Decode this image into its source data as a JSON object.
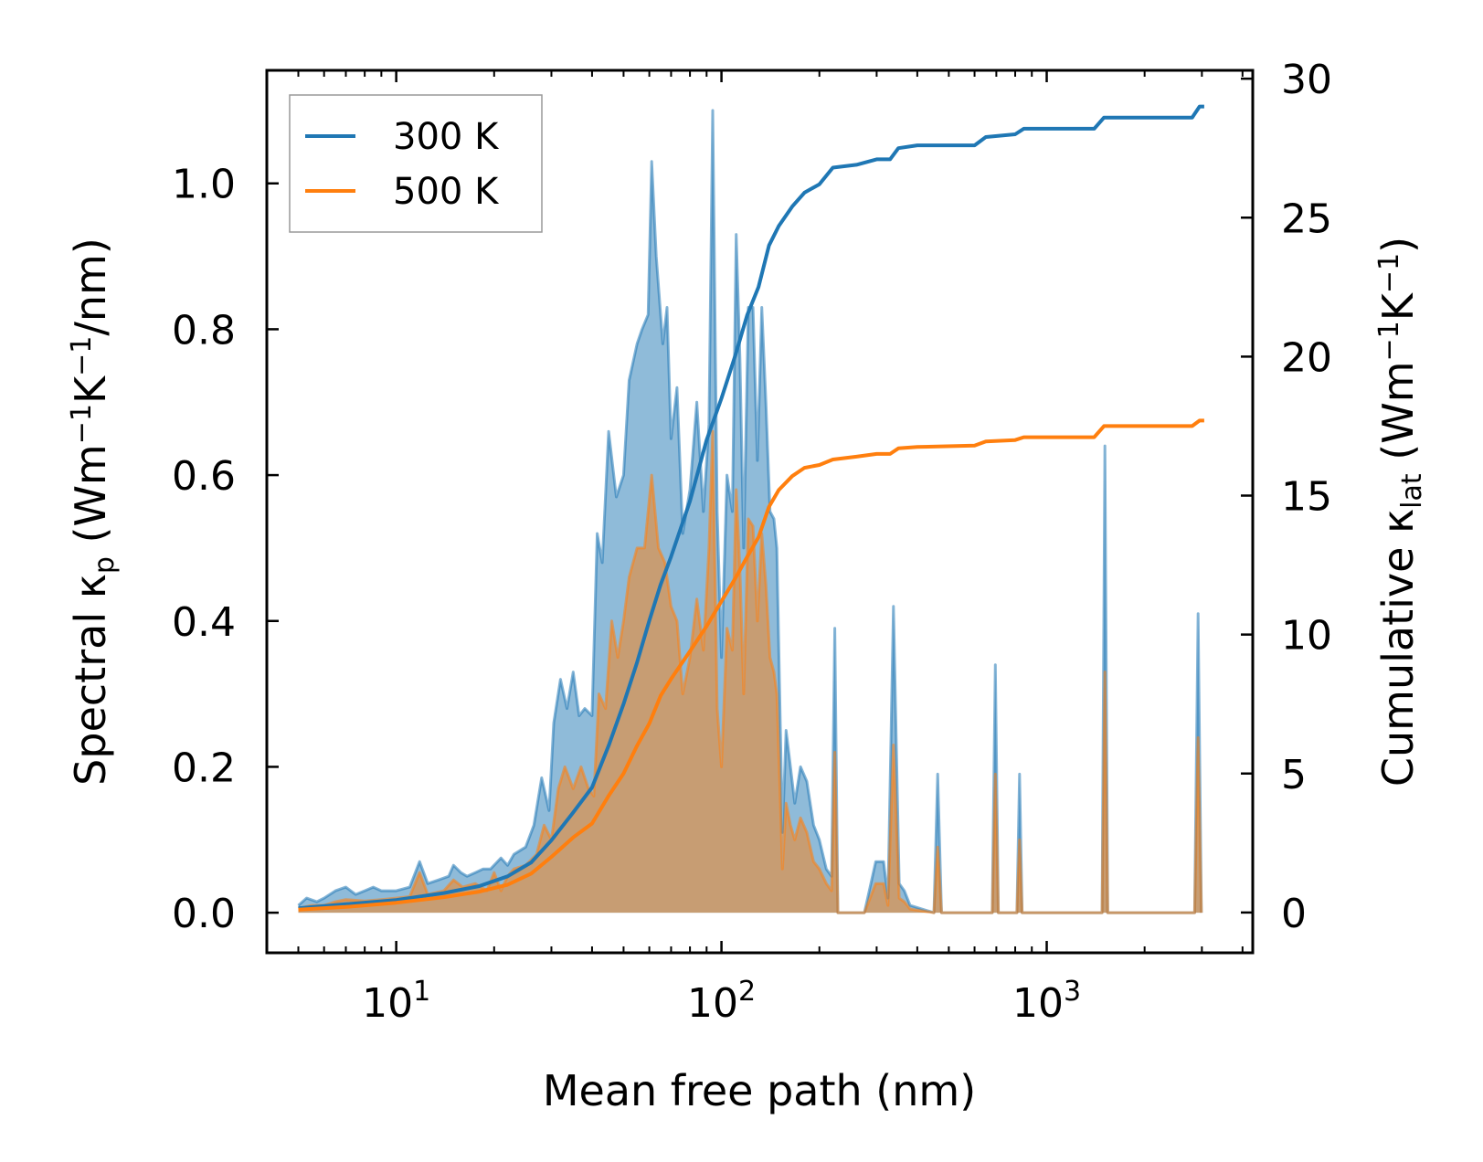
{
  "chart_data": {
    "type": "area",
    "xscale": "log",
    "xlabel": "Mean free path (nm)",
    "ylabel_left": {
      "pre": "Spectral κ",
      "sub": "p",
      "post": " (Wm",
      "sup1": "−1",
      "mid": "K",
      "sup2": "−1",
      "end": "/nm)"
    },
    "ylabel_right": {
      "pre": "Cumulative κ",
      "sub": "lat",
      "post": " (Wm",
      "sup1": "−1",
      "mid": "K",
      "sup2": "−1",
      "end": ")"
    },
    "xlim": [
      4.0,
      4300
    ],
    "ylim_left": [
      -0.055,
      1.155
    ],
    "ylim_right": [
      -1.45,
      30.3
    ],
    "x_ticks": [
      {
        "value": 10,
        "base": "10",
        "exp": "1"
      },
      {
        "value": 100,
        "base": "10",
        "exp": "2"
      },
      {
        "value": 1000,
        "base": "10",
        "exp": "3"
      }
    ],
    "y_left_ticks": [
      {
        "value": 0.0,
        "label": "0.0"
      },
      {
        "value": 0.2,
        "label": "0.2"
      },
      {
        "value": 0.4,
        "label": "0.4"
      },
      {
        "value": 0.6,
        "label": "0.6"
      },
      {
        "value": 0.8,
        "label": "0.8"
      },
      {
        "value": 1.0,
        "label": "1.0"
      }
    ],
    "y_right_ticks": [
      {
        "value": 0,
        "label": "0"
      },
      {
        "value": 5,
        "label": "5"
      },
      {
        "value": 10,
        "label": "10"
      },
      {
        "value": 15,
        "label": "15"
      },
      {
        "value": 20,
        "label": "20"
      },
      {
        "value": 25,
        "label": "25"
      },
      {
        "value": 30,
        "label": "30"
      }
    ],
    "legend": {
      "position": "top-left",
      "entries": [
        {
          "label": "300 K",
          "color": "#1f77b4"
        },
        {
          "label": "500 K",
          "color": "#ff7f0e"
        }
      ]
    },
    "series": [
      {
        "name": "300 K",
        "color": "#1f77b4",
        "fill": "rgba(31,119,180,0.5)",
        "spectral": [
          [
            5.0,
            0.01
          ],
          [
            5.3,
            0.02
          ],
          [
            5.7,
            0.015
          ],
          [
            6.0,
            0.02
          ],
          [
            6.5,
            0.03
          ],
          [
            7.0,
            0.035
          ],
          [
            7.5,
            0.025
          ],
          [
            8.0,
            0.03
          ],
          [
            8.5,
            0.035
          ],
          [
            9.0,
            0.03
          ],
          [
            10.0,
            0.03
          ],
          [
            11.0,
            0.035
          ],
          [
            11.8,
            0.07
          ],
          [
            12.5,
            0.04
          ],
          [
            13.5,
            0.045
          ],
          [
            14.5,
            0.05
          ],
          [
            15.0,
            0.065
          ],
          [
            15.8,
            0.055
          ],
          [
            16.5,
            0.05
          ],
          [
            17.5,
            0.055
          ],
          [
            18.5,
            0.06
          ],
          [
            19.5,
            0.06
          ],
          [
            21.0,
            0.075
          ],
          [
            22.0,
            0.065
          ],
          [
            23.0,
            0.08
          ],
          [
            25.0,
            0.09
          ],
          [
            26.5,
            0.12
          ],
          [
            28.0,
            0.185
          ],
          [
            29.5,
            0.14
          ],
          [
            30.5,
            0.26
          ],
          [
            32.0,
            0.32
          ],
          [
            33.5,
            0.28
          ],
          [
            35.0,
            0.33
          ],
          [
            36.5,
            0.27
          ],
          [
            38.0,
            0.28
          ],
          [
            40.0,
            0.27
          ],
          [
            41.5,
            0.52
          ],
          [
            43.0,
            0.48
          ],
          [
            45.0,
            0.66
          ],
          [
            47.5,
            0.57
          ],
          [
            50.0,
            0.6
          ],
          [
            52.0,
            0.73
          ],
          [
            55.0,
            0.78
          ],
          [
            57.0,
            0.8
          ],
          [
            59.5,
            0.82
          ],
          [
            61.0,
            1.03
          ],
          [
            63.0,
            0.9
          ],
          [
            66.0,
            0.78
          ],
          [
            68.0,
            0.83
          ],
          [
            70.0,
            0.65
          ],
          [
            73.0,
            0.72
          ],
          [
            76.0,
            0.52
          ],
          [
            80.0,
            0.58
          ],
          [
            84.0,
            0.7
          ],
          [
            88.0,
            0.55
          ],
          [
            91.5,
            0.67
          ],
          [
            94.0,
            1.1
          ],
          [
            97.0,
            0.55
          ],
          [
            100.0,
            0.35
          ],
          [
            104.0,
            0.6
          ],
          [
            108.0,
            0.55
          ],
          [
            111.0,
            0.93
          ],
          [
            114.0,
            0.76
          ],
          [
            117.0,
            0.5
          ],
          [
            121.0,
            0.83
          ],
          [
            125.0,
            0.83
          ],
          [
            129.0,
            0.62
          ],
          [
            133.0,
            0.83
          ],
          [
            137.0,
            0.7
          ],
          [
            141.0,
            0.55
          ],
          [
            145.0,
            0.54
          ],
          [
            148.0,
            0.5
          ],
          [
            151.0,
            0.3
          ],
          [
            154.0,
            0.11
          ],
          [
            158.0,
            0.25
          ],
          [
            163.0,
            0.2
          ],
          [
            168.0,
            0.15
          ],
          [
            175.0,
            0.2
          ],
          [
            183.0,
            0.18
          ],
          [
            192.0,
            0.12
          ],
          [
            200.0,
            0.1
          ],
          [
            210.0,
            0.06
          ],
          [
            218.0,
            0.05
          ],
          [
            223.0,
            0.39
          ],
          [
            228.0,
            0.0
          ],
          [
            275.0,
            0.0
          ],
          [
            298.0,
            0.07
          ],
          [
            315.0,
            0.07
          ],
          [
            325.0,
            0.02
          ],
          [
            338.0,
            0.42
          ],
          [
            352.0,
            0.04
          ],
          [
            365.0,
            0.03
          ],
          [
            380.0,
            0.01
          ],
          [
            450.0,
            0.0
          ],
          [
            462.0,
            0.19
          ],
          [
            475.0,
            0.0
          ],
          [
            680.0,
            0.0
          ],
          [
            695.0,
            0.34
          ],
          [
            710.0,
            0.0
          ],
          [
            810.0,
            0.0
          ],
          [
            825.0,
            0.19
          ],
          [
            840.0,
            0.0
          ],
          [
            1480.0,
            0.0
          ],
          [
            1510.0,
            0.64
          ],
          [
            1540.0,
            0.0
          ],
          [
            2850.0,
            0.0
          ],
          [
            2920.0,
            0.41
          ],
          [
            2990.0,
            0.0
          ]
        ],
        "cumulative": [
          [
            5.0,
            0.15
          ],
          [
            7.0,
            0.3
          ],
          [
            10.0,
            0.45
          ],
          [
            14.0,
            0.7
          ],
          [
            18.0,
            0.95
          ],
          [
            22.0,
            1.3
          ],
          [
            26.0,
            1.8
          ],
          [
            30.0,
            2.6
          ],
          [
            35.0,
            3.6
          ],
          [
            40.0,
            4.5
          ],
          [
            45.0,
            6.0
          ],
          [
            50.0,
            7.5
          ],
          [
            55.0,
            9.0
          ],
          [
            60.0,
            10.5
          ],
          [
            65.0,
            11.8
          ],
          [
            70.0,
            12.8
          ],
          [
            80.0,
            14.8
          ],
          [
            90.0,
            17.0
          ],
          [
            100.0,
            18.5
          ],
          [
            110.0,
            20.0
          ],
          [
            120.0,
            21.5
          ],
          [
            130.0,
            22.5
          ],
          [
            140.0,
            24.0
          ],
          [
            150.0,
            24.7
          ],
          [
            165.0,
            25.4
          ],
          [
            180.0,
            25.9
          ],
          [
            200.0,
            26.2
          ],
          [
            220.0,
            26.8
          ],
          [
            260.0,
            26.9
          ],
          [
            300.0,
            27.1
          ],
          [
            330.0,
            27.1
          ],
          [
            350.0,
            27.5
          ],
          [
            400.0,
            27.6
          ],
          [
            600.0,
            27.6
          ],
          [
            650.0,
            27.9
          ],
          [
            800.0,
            28.0
          ],
          [
            850.0,
            28.2
          ],
          [
            1400.0,
            28.2
          ],
          [
            1500.0,
            28.6
          ],
          [
            2800.0,
            28.6
          ],
          [
            2950.0,
            29.0
          ],
          [
            3050.0,
            29.0
          ]
        ]
      },
      {
        "name": "500 K",
        "color": "#ff7f0e",
        "fill": "rgba(255,127,14,0.5)",
        "spectral": [
          [
            5.0,
            0.006
          ],
          [
            5.5,
            0.01
          ],
          [
            6.0,
            0.01
          ],
          [
            6.5,
            0.015
          ],
          [
            7.0,
            0.018
          ],
          [
            8.0,
            0.016
          ],
          [
            9.0,
            0.018
          ],
          [
            10.0,
            0.02
          ],
          [
            11.0,
            0.022
          ],
          [
            11.8,
            0.055
          ],
          [
            12.5,
            0.025
          ],
          [
            14.0,
            0.03
          ],
          [
            15.0,
            0.045
          ],
          [
            16.0,
            0.035
          ],
          [
            17.5,
            0.04
          ],
          [
            19.0,
            0.03
          ],
          [
            20.0,
            0.055
          ],
          [
            21.0,
            0.03
          ],
          [
            22.0,
            0.05
          ],
          [
            23.0,
            0.06
          ],
          [
            25.0,
            0.065
          ],
          [
            27.0,
            0.08
          ],
          [
            28.5,
            0.12
          ],
          [
            30.0,
            0.1
          ],
          [
            31.5,
            0.17
          ],
          [
            33.0,
            0.2
          ],
          [
            35.0,
            0.17
          ],
          [
            37.0,
            0.2
          ],
          [
            39.0,
            0.17
          ],
          [
            40.5,
            0.16
          ],
          [
            42.0,
            0.3
          ],
          [
            44.0,
            0.28
          ],
          [
            46.0,
            0.4
          ],
          [
            48.0,
            0.35
          ],
          [
            50.0,
            0.4
          ],
          [
            52.0,
            0.46
          ],
          [
            55.0,
            0.5
          ],
          [
            58.0,
            0.5
          ],
          [
            61.0,
            0.6
          ],
          [
            64.0,
            0.5
          ],
          [
            67.0,
            0.48
          ],
          [
            70.0,
            0.42
          ],
          [
            73.0,
            0.4
          ],
          [
            76.0,
            0.3
          ],
          [
            80.0,
            0.35
          ],
          [
            84.0,
            0.43
          ],
          [
            88.0,
            0.36
          ],
          [
            91.5,
            0.5
          ],
          [
            94.0,
            0.66
          ],
          [
            97.0,
            0.28
          ],
          [
            100.0,
            0.2
          ],
          [
            104.0,
            0.39
          ],
          [
            108.0,
            0.36
          ],
          [
            111.0,
            0.58
          ],
          [
            114.0,
            0.47
          ],
          [
            117.0,
            0.3
          ],
          [
            121.0,
            0.54
          ],
          [
            125.0,
            0.53
          ],
          [
            129.0,
            0.4
          ],
          [
            133.0,
            0.52
          ],
          [
            137.0,
            0.45
          ],
          [
            141.0,
            0.35
          ],
          [
            145.0,
            0.33
          ],
          [
            148.0,
            0.3
          ],
          [
            151.0,
            0.18
          ],
          [
            154.0,
            0.06
          ],
          [
            158.0,
            0.15
          ],
          [
            163.0,
            0.12
          ],
          [
            168.0,
            0.1
          ],
          [
            175.0,
            0.13
          ],
          [
            183.0,
            0.11
          ],
          [
            192.0,
            0.07
          ],
          [
            200.0,
            0.06
          ],
          [
            210.0,
            0.04
          ],
          [
            218.0,
            0.03
          ],
          [
            223.0,
            0.22
          ],
          [
            228.0,
            0.0
          ],
          [
            275.0,
            0.0
          ],
          [
            298.0,
            0.04
          ],
          [
            315.0,
            0.04
          ],
          [
            325.0,
            0.01
          ],
          [
            338.0,
            0.23
          ],
          [
            352.0,
            0.02
          ],
          [
            365.0,
            0.015
          ],
          [
            380.0,
            0.005
          ],
          [
            450.0,
            0.0
          ],
          [
            462.0,
            0.09
          ],
          [
            475.0,
            0.0
          ],
          [
            680.0,
            0.0
          ],
          [
            695.0,
            0.19
          ],
          [
            710.0,
            0.0
          ],
          [
            810.0,
            0.0
          ],
          [
            825.0,
            0.1
          ],
          [
            840.0,
            0.0
          ],
          [
            1480.0,
            0.0
          ],
          [
            1510.0,
            0.33
          ],
          [
            1540.0,
            0.0
          ],
          [
            2850.0,
            0.0
          ],
          [
            2920.0,
            0.24
          ],
          [
            2990.0,
            0.0
          ]
        ],
        "cumulative": [
          [
            5.0,
            0.1
          ],
          [
            7.0,
            0.2
          ],
          [
            10.0,
            0.35
          ],
          [
            14.0,
            0.55
          ],
          [
            18.0,
            0.75
          ],
          [
            22.0,
            1.0
          ],
          [
            26.0,
            1.4
          ],
          [
            30.0,
            2.0
          ],
          [
            35.0,
            2.7
          ],
          [
            40.0,
            3.2
          ],
          [
            45.0,
            4.2
          ],
          [
            50.0,
            5.0
          ],
          [
            55.0,
            6.0
          ],
          [
            60.0,
            6.8
          ],
          [
            65.0,
            7.8
          ],
          [
            70.0,
            8.4
          ],
          [
            80.0,
            9.4
          ],
          [
            90.0,
            10.3
          ],
          [
            100.0,
            11.2
          ],
          [
            110.0,
            12.0
          ],
          [
            120.0,
            12.8
          ],
          [
            130.0,
            13.5
          ],
          [
            140.0,
            14.6
          ],
          [
            150.0,
            15.2
          ],
          [
            165.0,
            15.7
          ],
          [
            180.0,
            16.0
          ],
          [
            200.0,
            16.1
          ],
          [
            220.0,
            16.3
          ],
          [
            260.0,
            16.4
          ],
          [
            300.0,
            16.5
          ],
          [
            330.0,
            16.5
          ],
          [
            350.0,
            16.7
          ],
          [
            400.0,
            16.75
          ],
          [
            600.0,
            16.8
          ],
          [
            650.0,
            16.95
          ],
          [
            800.0,
            17.0
          ],
          [
            850.0,
            17.1
          ],
          [
            1400.0,
            17.1
          ],
          [
            1500.0,
            17.5
          ],
          [
            2800.0,
            17.5
          ],
          [
            2950.0,
            17.7
          ],
          [
            3050.0,
            17.7
          ]
        ]
      }
    ]
  }
}
